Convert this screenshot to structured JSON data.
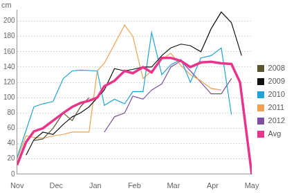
{
  "chart_data": {
    "type": "line",
    "ylabel": "cm",
    "xlim": [
      0,
      6
    ],
    "xticks": [
      {
        "value": 0,
        "label": "Nov"
      },
      {
        "value": 1,
        "label": "Dec"
      },
      {
        "value": 2,
        "label": "Jan"
      },
      {
        "value": 3,
        "label": "Feb"
      },
      {
        "value": 4,
        "label": "Mar"
      },
      {
        "value": 5,
        "label": "Apr"
      },
      {
        "value": 6,
        "label": "May"
      }
    ],
    "ylim": [
      0,
      215
    ],
    "yticks": [
      0,
      20,
      40,
      60,
      80,
      100,
      120,
      140,
      160,
      180,
      200
    ],
    "grid": true,
    "legend": "right",
    "series": [
      {
        "name": "2008",
        "color": "#5b5530",
        "x": [
          0.43,
          0.66,
          0.92,
          1.18,
          1.41,
          1.62,
          1.84
        ],
        "values": [
          44,
          46,
          60,
          80,
          70,
          88,
          100
        ]
      },
      {
        "name": "2009",
        "color": "#111111",
        "x": [
          0.23,
          0.43,
          0.66,
          0.92,
          1.18,
          1.41,
          1.62,
          1.84,
          2.23,
          2.49,
          2.75,
          2.96,
          3.22,
          3.44,
          3.7,
          3.93,
          4.19,
          4.43,
          4.7,
          4.96,
          5.22,
          5.48,
          5.74
        ],
        "values": [
          25,
          45,
          55,
          52,
          65,
          75,
          80,
          88,
          110,
          138,
          135,
          137,
          140,
          140,
          155,
          165,
          170,
          168,
          160,
          190,
          212,
          198,
          155
        ]
      },
      {
        "name": "2010",
        "color": "#1fa3d8",
        "x": [
          0,
          0.43,
          0.66,
          0.92,
          1.18,
          1.41,
          1.62,
          2.05,
          2.23,
          2.49,
          2.75,
          2.96,
          3.22,
          3.44,
          3.7,
          3.93,
          4.19,
          4.43,
          4.7,
          4.96,
          5.22,
          5.48
        ],
        "values": [
          22,
          88,
          92,
          95,
          125,
          135,
          136,
          135,
          90,
          98,
          92,
          108,
          108,
          185,
          130,
          143,
          150,
          120,
          152,
          155,
          165,
          78
        ]
      },
      {
        "name": "2011",
        "color": "#f0a050",
        "x": [
          0,
          0.23,
          0.43,
          0.66,
          0.92,
          1.18,
          1.41,
          1.84,
          2.05,
          2.23,
          2.49,
          2.75,
          2.96,
          3.22,
          3.44,
          3.7,
          3.93,
          4.19,
          4.43,
          4.7,
          4.96,
          5.22
        ],
        "values": [
          20,
          50,
          48,
          47,
          50,
          52,
          55,
          55,
          135,
          145,
          170,
          195,
          180,
          125,
          135,
          150,
          158,
          142,
          130,
          122,
          112,
          110
        ]
      },
      {
        "name": "2012",
        "color": "#7d4fa3",
        "x": [
          2.23,
          2.49,
          2.75,
          2.96,
          3.22,
          3.44,
          3.7,
          3.93,
          4.19,
          4.43,
          4.7,
          4.96,
          5.22,
          5.48
        ],
        "values": [
          55,
          75,
          80,
          102,
          98,
          110,
          118,
          140,
          148,
          135,
          120,
          105,
          105,
          125
        ]
      },
      {
        "name": "Avg",
        "color": "#e8348a",
        "x": [
          0,
          0.23,
          0.43,
          0.66,
          0.92,
          1.18,
          1.41,
          1.62,
          1.84,
          2.05,
          2.23,
          2.49,
          2.75,
          2.96,
          3.22,
          3.44,
          3.7,
          3.93,
          4.19,
          4.43,
          4.7,
          4.96,
          5.22,
          5.48,
          5.7,
          6.0
        ],
        "values": [
          12,
          42,
          56,
          60,
          70,
          80,
          88,
          93,
          96,
          100,
          115,
          122,
          135,
          132,
          140,
          133,
          152,
          152,
          148,
          140,
          146,
          147,
          145,
          144,
          120,
          0
        ]
      }
    ]
  }
}
